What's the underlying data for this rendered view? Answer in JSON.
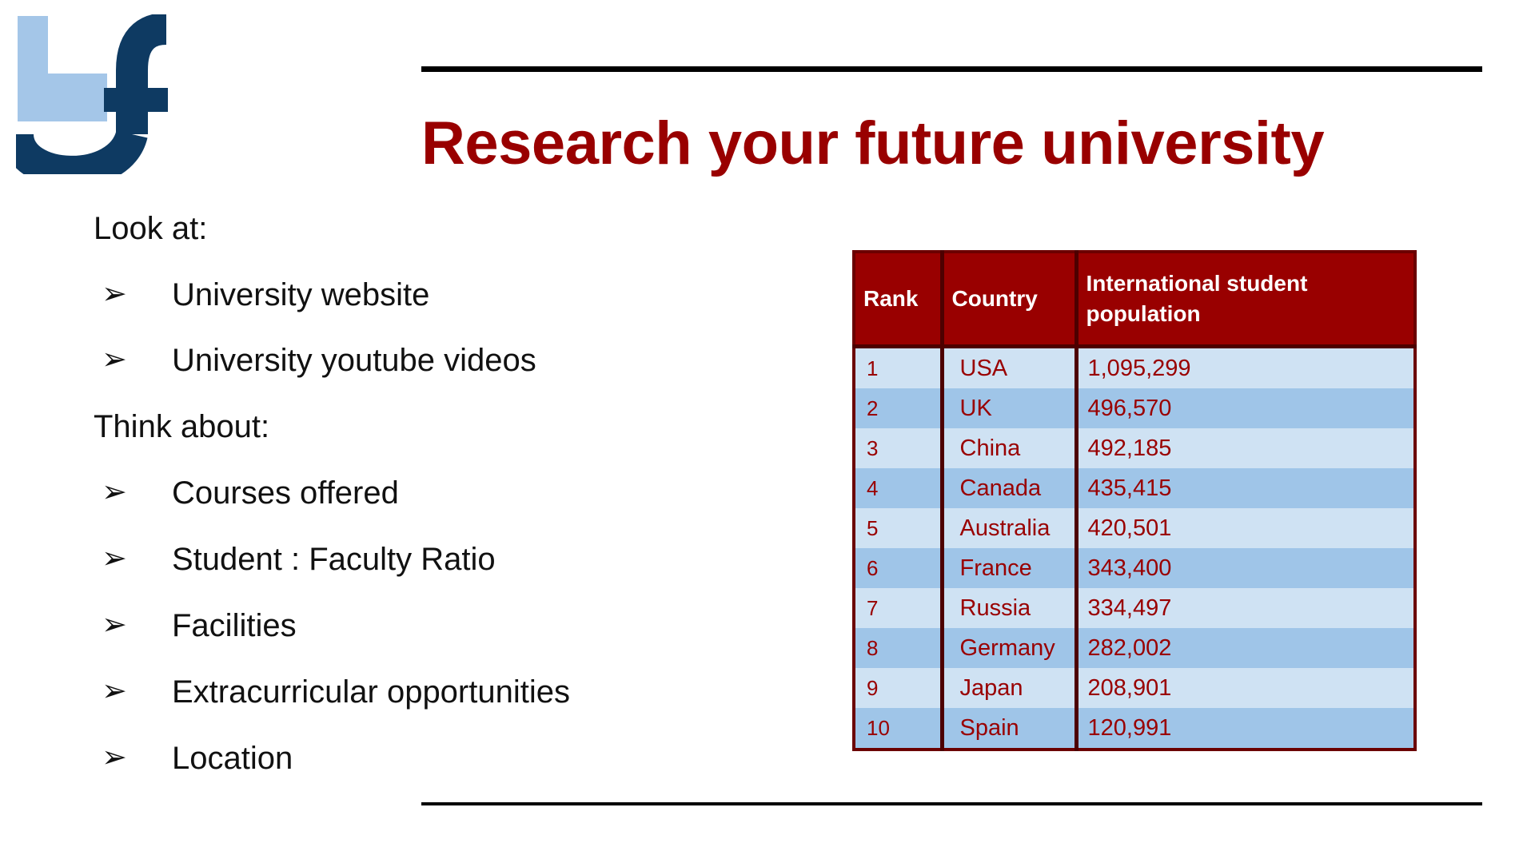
{
  "title": "Research your future university",
  "look_at": {
    "heading": "Look at:",
    "items": [
      "University website",
      "University youtube videos"
    ]
  },
  "think_about": {
    "heading": "Think about:",
    "items": [
      "Courses offered",
      "Student : Faculty Ratio",
      "Facilities",
      "Extracurricular opportunities",
      "Location"
    ]
  },
  "bullet_glyph": "➢",
  "table": {
    "headers": [
      "Rank",
      "Country",
      "International student population"
    ],
    "rows": [
      [
        "1",
        "USA",
        "1,095,299"
      ],
      [
        "2",
        "UK",
        "496,570"
      ],
      [
        "3",
        "China",
        "492,185"
      ],
      [
        "4",
        "Canada",
        "435,415"
      ],
      [
        "5",
        "Australia",
        "420,501"
      ],
      [
        "6",
        "France",
        "343,400"
      ],
      [
        "7",
        "Russia",
        "334,497"
      ],
      [
        "8",
        "Germany",
        "282,002"
      ],
      [
        "9",
        "Japan",
        "208,901"
      ],
      [
        "10",
        "Spain",
        "120,991"
      ]
    ]
  },
  "colors": {
    "accent": "#990000",
    "row_light": "#cfe2f3",
    "row_dark": "#9fc5e8",
    "logo_light_blue": "#a4c6e8",
    "logo_navy": "#0e3a62"
  },
  "logo_icon": "bf-logo"
}
